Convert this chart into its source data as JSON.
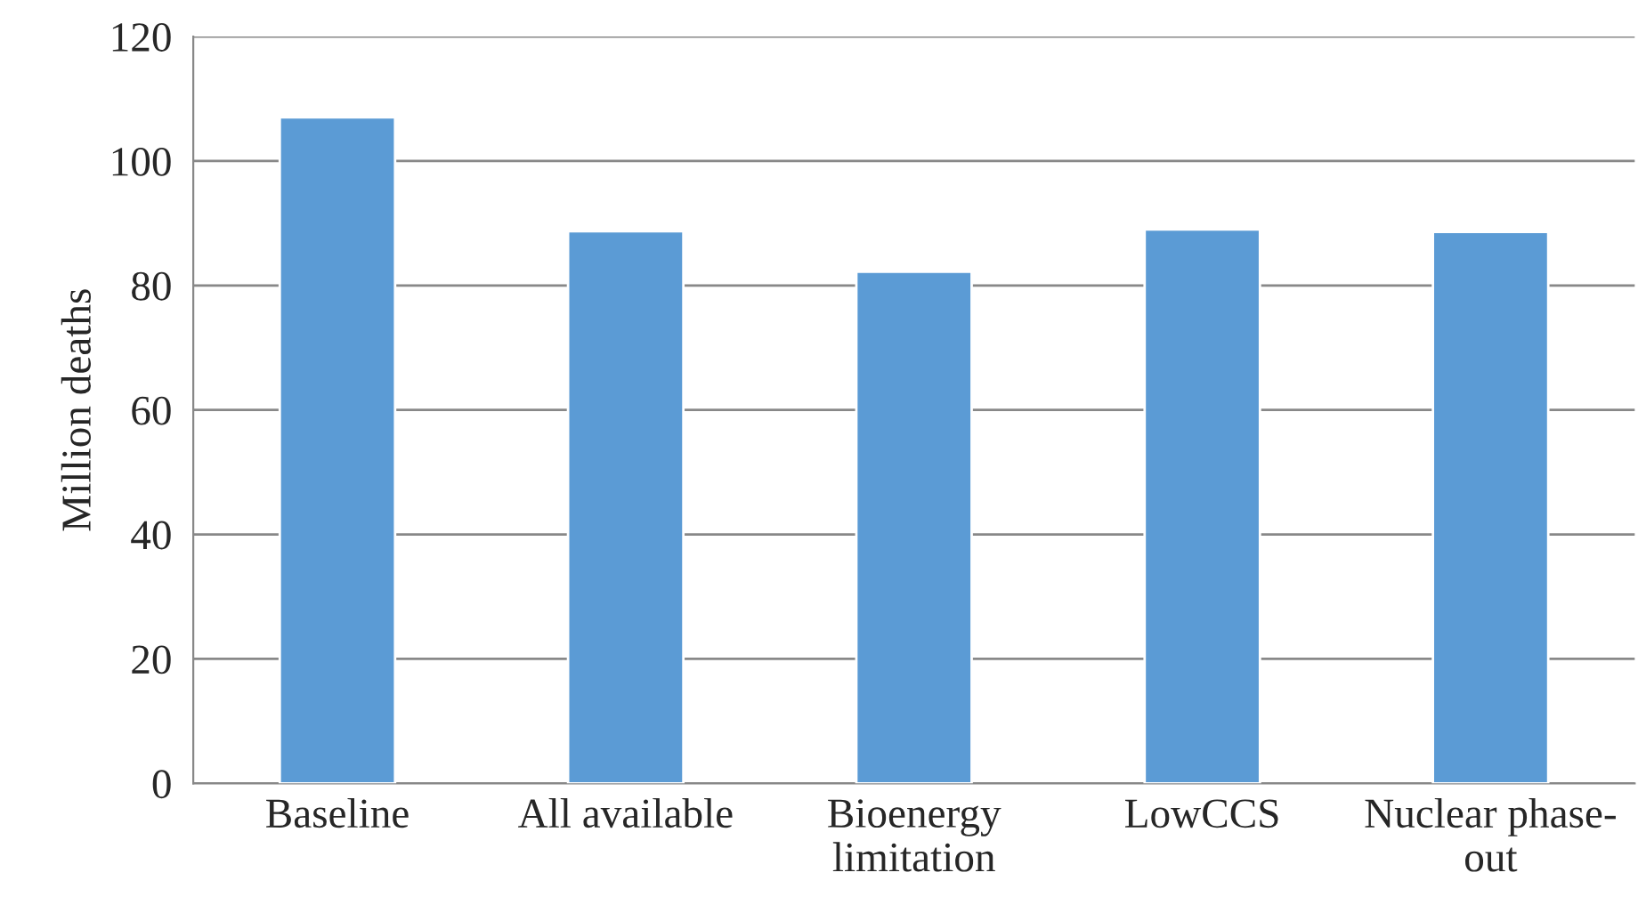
{
  "chart_data": {
    "type": "bar",
    "ylabel": "Million deaths",
    "categories": [
      "Baseline",
      "All available",
      "Bioenergy\nlimitation",
      "LowCCS",
      "Nuclear phase-\nout"
    ],
    "values": [
      107,
      88.7,
      82.2,
      89,
      88.6
    ],
    "color": "#5b9bd5",
    "ylim": [
      0,
      120
    ],
    "yticks": [
      0,
      20,
      40,
      60,
      80,
      100,
      120
    ],
    "grid": "y"
  }
}
